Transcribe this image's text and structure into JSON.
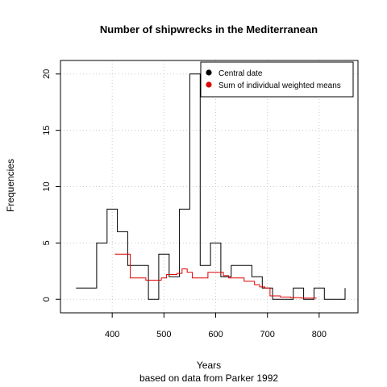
{
  "chart_data": {
    "type": "line",
    "title": "Number of shipwrecks in the Mediterranean",
    "xlabel": "Years",
    "subtitle": "based on data from Parker 1992",
    "ylabel": "Frequencies",
    "xlim": [
      300,
      875
    ],
    "ylim": [
      -1.2,
      21.2
    ],
    "x_ticks": [
      400,
      500,
      600,
      700,
      800
    ],
    "y_ticks": [
      0,
      5,
      10,
      15,
      20
    ],
    "grid": true,
    "legend_position": "top-right",
    "series": [
      {
        "name": "Central date",
        "color": "#000000",
        "step": true,
        "x": [
          330,
          350,
          370,
          390,
          410,
          430,
          450,
          470,
          490,
          510,
          530,
          550,
          570,
          590,
          610,
          630,
          650,
          670,
          690,
          710,
          730,
          750,
          770,
          790,
          810,
          830,
          850
        ],
        "y": [
          1,
          1,
          5,
          8,
          6,
          3,
          3,
          0,
          4,
          2,
          8,
          20,
          3,
          5,
          2,
          3,
          3,
          2,
          1,
          0,
          0,
          1,
          0,
          1,
          0,
          0,
          1
        ]
      },
      {
        "name": "Sum of individual weighted means",
        "color": "#e00000",
        "step": true,
        "x": [
          405,
          415,
          425,
          435,
          445,
          455,
          465,
          475,
          485,
          495,
          505,
          515,
          525,
          535,
          545,
          555,
          565,
          575,
          585,
          595,
          605,
          615,
          625,
          635,
          645,
          655,
          665,
          675,
          685,
          695,
          705,
          715,
          725,
          735,
          745,
          755,
          765,
          775,
          785,
          795
        ],
        "y": [
          4,
          4,
          4,
          1.9,
          1.9,
          1.9,
          1.7,
          1.7,
          1.7,
          1.9,
          2.2,
          2.2,
          2.3,
          2.7,
          2.4,
          1.9,
          1.9,
          1.9,
          2.4,
          2.4,
          2.4,
          2.1,
          1.9,
          1.9,
          1.9,
          1.6,
          1.6,
          1.3,
          1.1,
          1.0,
          0.3,
          0.3,
          0.2,
          0.2,
          0.15,
          0.15,
          0.1,
          0.1,
          0.1,
          0.1
        ]
      }
    ]
  }
}
